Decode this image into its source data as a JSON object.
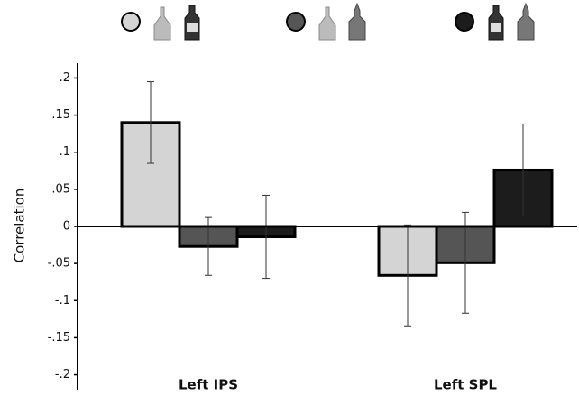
{
  "chart_data": {
    "type": "bar",
    "y_label": "Correlation",
    "categories": [
      "Left IPS",
      "Left SPL"
    ],
    "series": [
      {
        "color": "#d4d4d4",
        "values": [
          0.14,
          -0.066
        ],
        "errors": [
          0.055,
          0.068
        ]
      },
      {
        "color": "#555555",
        "values": [
          -0.027,
          -0.049
        ],
        "errors": [
          0.039,
          0.068
        ]
      },
      {
        "color": "#1c1c1c",
        "values": [
          -0.014,
          0.076
        ],
        "errors": [
          0.056,
          0.062
        ]
      }
    ],
    "ylim": [
      -0.22,
      0.22
    ],
    "yticks": [
      {
        "value": 0.2,
        "label": ".2"
      },
      {
        "value": 0.15,
        "label": ".15"
      },
      {
        "value": 0.1,
        "label": ".1"
      },
      {
        "value": 0.05,
        "label": ".05"
      },
      0,
      {
        "value": -0.05,
        "label": "-.05"
      },
      {
        "value": -0.1,
        "label": "-.1"
      },
      {
        "value": -0.15,
        "label": "-.15"
      },
      {
        "value": -0.2,
        "label": "-.2"
      }
    ]
  }
}
